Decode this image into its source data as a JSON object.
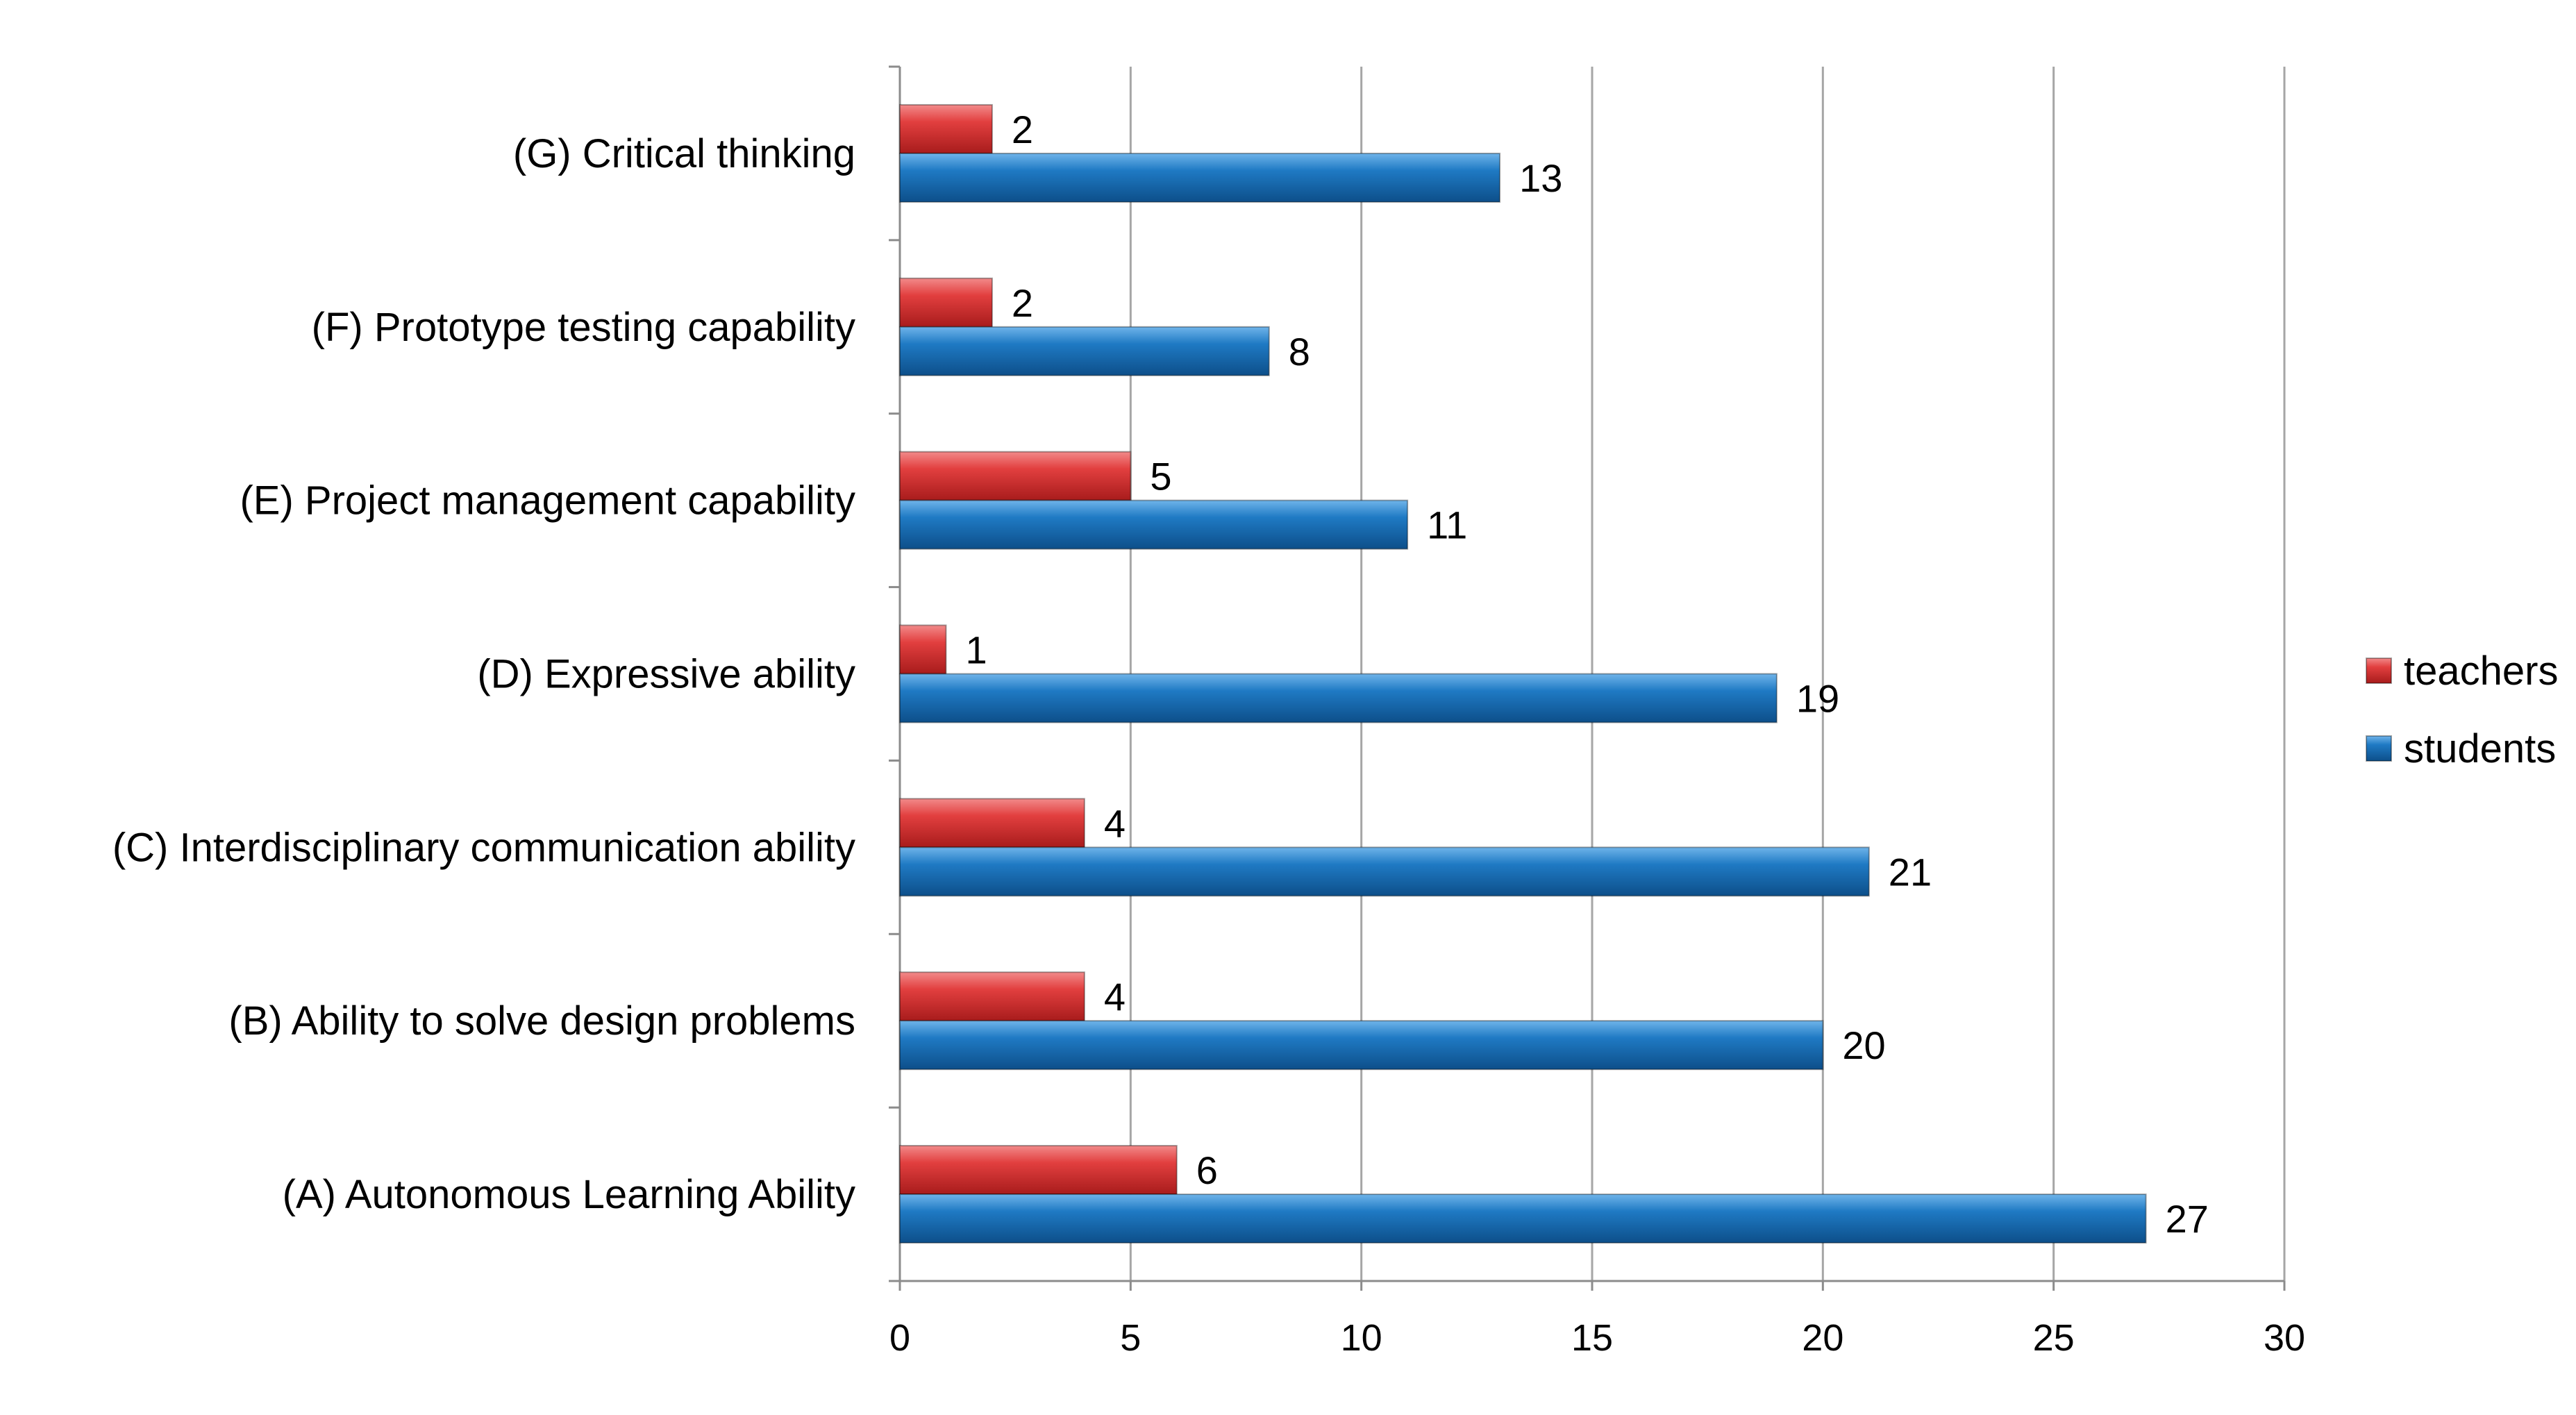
{
  "chart_data": {
    "type": "bar",
    "orientation": "horizontal",
    "categories": [
      "(A) Autonomous Learning Ability",
      "(B) Ability to solve design problems",
      "(C) Interdisciplinary communication ability",
      "(D) Expressive ability",
      "(E) Project management capability",
      "(F) Prototype testing capability",
      "(G) Critical thinking"
    ],
    "series": [
      {
        "name": "teachers",
        "color": "#e03c3c",
        "values": [
          6,
          4,
          4,
          1,
          5,
          2,
          2
        ]
      },
      {
        "name": "students",
        "color": "#1f7ac4",
        "values": [
          27,
          20,
          21,
          19,
          11,
          8,
          13
        ]
      }
    ],
    "xlim": [
      0,
      30
    ],
    "xticks": [
      0,
      5,
      10,
      15,
      20,
      25,
      30
    ],
    "grid": true,
    "legend": "right",
    "title": "",
    "xlabel": "",
    "ylabel": ""
  }
}
